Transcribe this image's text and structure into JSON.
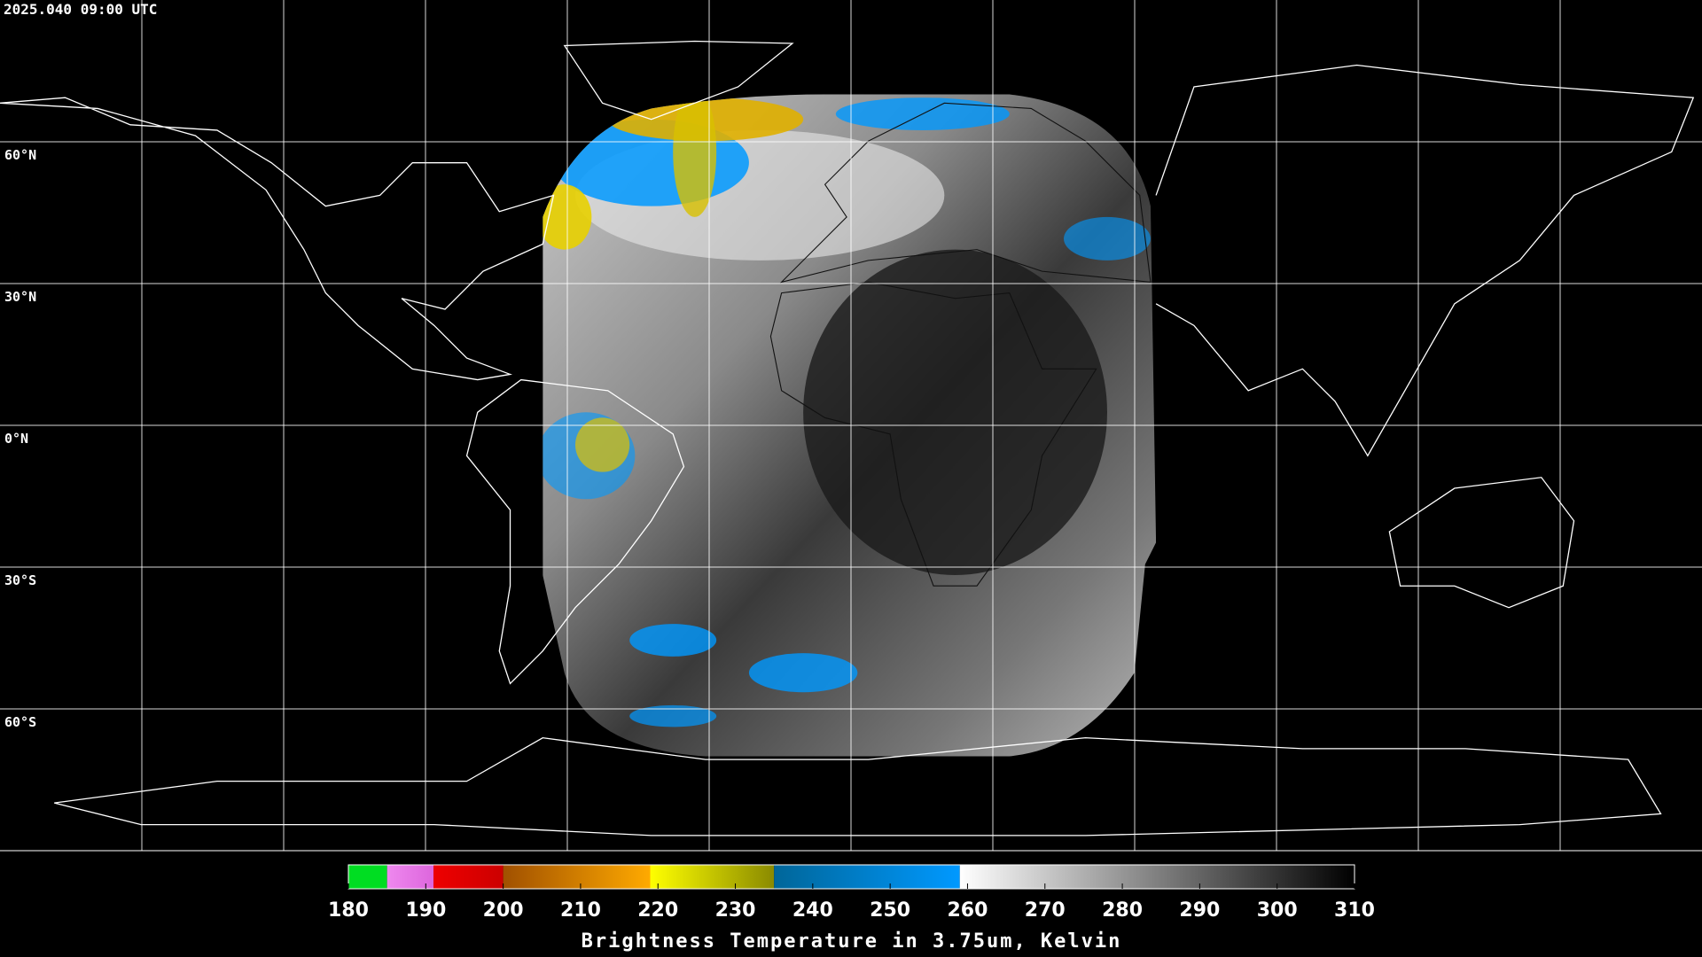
{
  "map": {
    "timestamp": "2025.040 09:00 UTC",
    "latitudes": [
      {
        "value": 60,
        "label": "60°N"
      },
      {
        "value": 30,
        "label": "30°N"
      },
      {
        "value": 0,
        "label": "0°N"
      },
      {
        "value": -30,
        "label": "30°S"
      },
      {
        "value": -60,
        "label": "60°S"
      }
    ],
    "colorbar": {
      "title": "Brightness Temperature in 3.75um, Kelvin",
      "lim": [
        180,
        310
      ],
      "ticks": [
        180,
        190,
        200,
        210,
        220,
        230,
        240,
        250,
        260,
        270,
        280,
        290,
        300,
        310
      ],
      "segments": [
        {
          "from": 180,
          "to": 185,
          "colors": [
            "#00dd22",
            "#00dd22"
          ]
        },
        {
          "from": 185,
          "to": 191,
          "colors": [
            "#ee88ee",
            "#dd66dd"
          ]
        },
        {
          "from": 191,
          "to": 200,
          "colors": [
            "#ee0000",
            "#cc0000"
          ]
        },
        {
          "from": 200,
          "to": 219,
          "colors": [
            "#a05000",
            "#ffaa00"
          ]
        },
        {
          "from": 219,
          "to": 235,
          "colors": [
            "#ffff00",
            "#8a8a00"
          ]
        },
        {
          "from": 235,
          "to": 259,
          "colors": [
            "#006699",
            "#0099ff"
          ]
        },
        {
          "from": 259,
          "to": 310,
          "colors": [
            "#ffffff",
            "#000000"
          ]
        }
      ]
    }
  }
}
